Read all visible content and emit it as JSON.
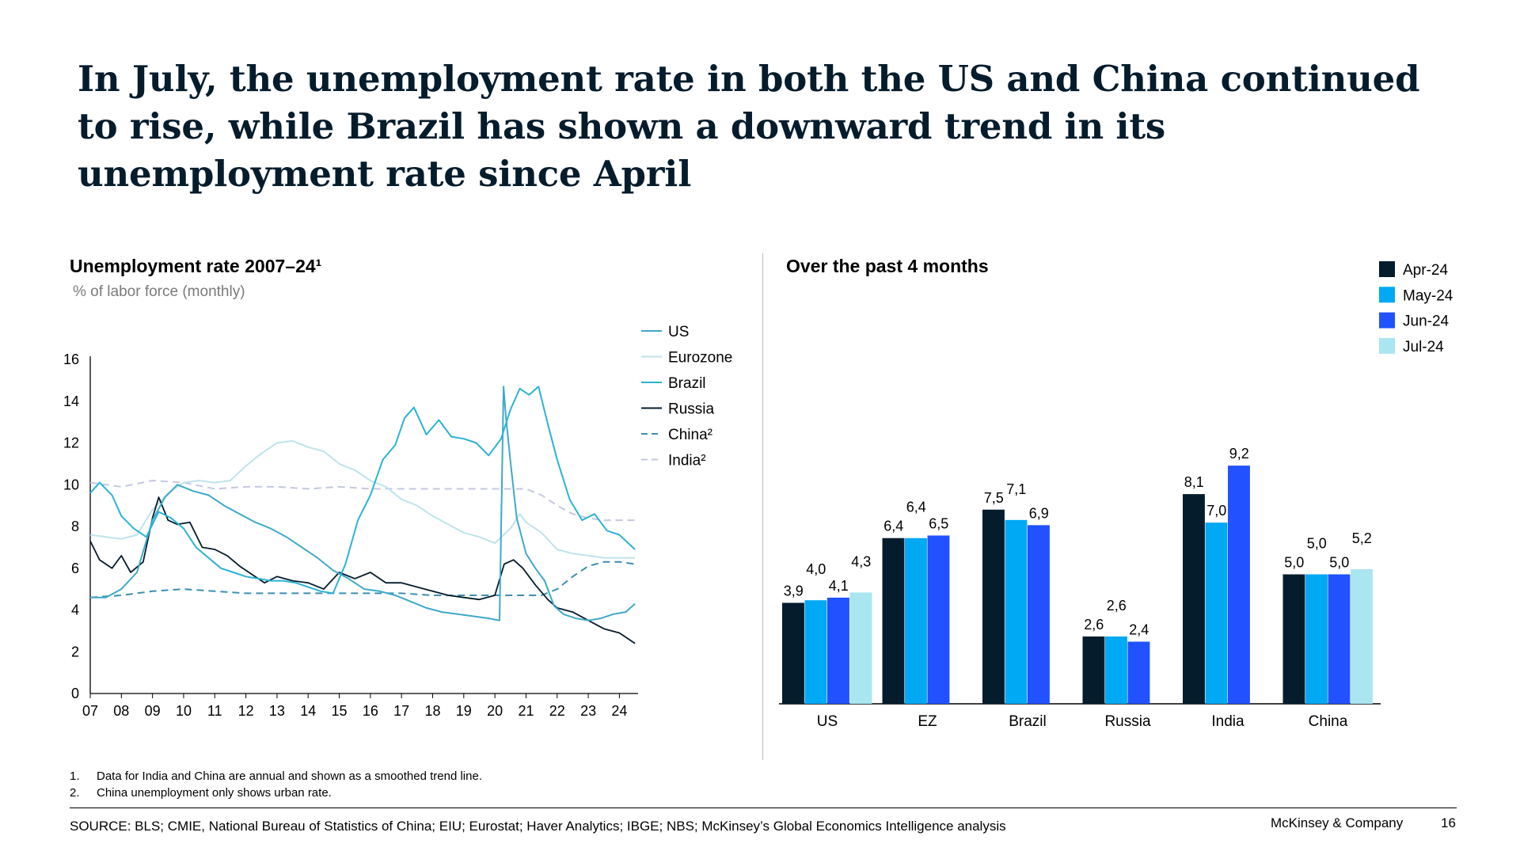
{
  "headline": "In July, the unemployment rate in both the US and China continued to rise, while Brazil has shown a downward trend in its unemployment rate since April",
  "left_panel": {
    "title": "Unemployment rate 2007–24¹",
    "subtitle": "% of labor force (monthly)"
  },
  "right_panel": {
    "title": "Over the past 4 months"
  },
  "colors": {
    "navy": "#051c2c",
    "cyan": "#00a9f4",
    "blue": "#2251ff",
    "light_cyan": "#aae6ef",
    "us": "#3fa9c8",
    "eurozone": "#bfe3ea",
    "brazil": "#2bb3d3",
    "russia": "#051c2c",
    "china": "#3a8fb0",
    "india": "#c4c8e0"
  },
  "chart_data": [
    {
      "type": "line",
      "title": "Unemployment rate 2007–24¹",
      "ylabel": "% of labor force (monthly)",
      "xlim": [
        2007,
        2024.6
      ],
      "ylim": [
        0,
        16
      ],
      "yticks": [
        "0",
        "2",
        "4",
        "6",
        "8",
        "10",
        "12",
        "14",
        "16"
      ],
      "xticks": [
        "07",
        "08",
        "09",
        "10",
        "11",
        "12",
        "13",
        "14",
        "15",
        "16",
        "17",
        "18",
        "19",
        "20",
        "21",
        "22",
        "23",
        "24"
      ],
      "grid": false,
      "legend_position": "top-right",
      "series": [
        {
          "name": "US",
          "style": "solid",
          "color": "#3fa9c8",
          "x": [
            2007,
            2007.5,
            2008,
            2008.5,
            2009,
            2009.4,
            2009.8,
            2010.3,
            2010.8,
            2011.3,
            2011.8,
            2012.3,
            2012.8,
            2013.3,
            2013.8,
            2014.3,
            2014.8,
            2015.3,
            2015.8,
            2016.3,
            2016.8,
            2017.3,
            2017.8,
            2018.3,
            2018.8,
            2019.3,
            2019.8,
            2020.15,
            2020.28,
            2020.35,
            2020.5,
            2020.7,
            2021,
            2021.3,
            2021.6,
            2021.9,
            2022.2,
            2022.6,
            2023,
            2023.4,
            2023.8,
            2024.2,
            2024.5
          ],
          "y": [
            4.6,
            4.6,
            5.0,
            5.8,
            8.3,
            9.4,
            10.0,
            9.7,
            9.5,
            9.0,
            8.6,
            8.2,
            7.9,
            7.5,
            7.0,
            6.5,
            5.9,
            5.5,
            5.0,
            4.9,
            4.7,
            4.4,
            4.1,
            3.9,
            3.8,
            3.7,
            3.6,
            3.5,
            14.7,
            13.3,
            11.1,
            8.4,
            6.7,
            6.0,
            5.4,
            4.2,
            3.8,
            3.6,
            3.5,
            3.6,
            3.8,
            3.9,
            4.3
          ]
        },
        {
          "name": "Eurozone",
          "style": "solid",
          "color": "#bfe3ea",
          "x": [
            2007,
            2007.5,
            2008,
            2008.5,
            2009,
            2009.5,
            2010,
            2010.5,
            2011,
            2011.5,
            2012,
            2012.5,
            2013,
            2013.5,
            2014,
            2014.5,
            2015,
            2015.5,
            2016,
            2016.5,
            2017,
            2017.5,
            2018,
            2018.5,
            2019,
            2019.5,
            2020,
            2020.5,
            2020.8,
            2021,
            2021.5,
            2022,
            2022.5,
            2023,
            2023.5,
            2024,
            2024.5
          ],
          "y": [
            7.6,
            7.5,
            7.4,
            7.6,
            8.8,
            9.6,
            10.1,
            10.2,
            10.1,
            10.2,
            10.9,
            11.5,
            12.0,
            12.1,
            11.8,
            11.6,
            11.0,
            10.7,
            10.2,
            9.9,
            9.3,
            9.0,
            8.5,
            8.1,
            7.7,
            7.5,
            7.2,
            7.9,
            8.6,
            8.2,
            7.7,
            6.9,
            6.7,
            6.6,
            6.5,
            6.5,
            6.5
          ]
        },
        {
          "name": "Brazil",
          "style": "solid",
          "color": "#2bb3d3",
          "x": [
            2007,
            2007.3,
            2007.7,
            2008,
            2008.4,
            2008.8,
            2009.2,
            2009.6,
            2010,
            2010.4,
            2010.8,
            2011.2,
            2011.6,
            2012,
            2012.4,
            2012.8,
            2013.2,
            2013.6,
            2014,
            2014.4,
            2014.8,
            2015.2,
            2015.6,
            2016,
            2016.4,
            2016.8,
            2017.1,
            2017.4,
            2017.8,
            2018.2,
            2018.6,
            2019,
            2019.4,
            2019.8,
            2020.2,
            2020.5,
            2020.8,
            2021.1,
            2021.4,
            2021.7,
            2022,
            2022.4,
            2022.8,
            2023.2,
            2023.6,
            2024,
            2024.5
          ],
          "y": [
            9.6,
            10.1,
            9.5,
            8.5,
            7.9,
            7.5,
            8.7,
            8.4,
            7.9,
            7.0,
            6.5,
            6.0,
            5.8,
            5.6,
            5.5,
            5.4,
            5.4,
            5.3,
            5.1,
            4.9,
            4.8,
            6.2,
            8.3,
            9.5,
            11.2,
            11.9,
            13.2,
            13.7,
            12.4,
            13.1,
            12.3,
            12.2,
            12.0,
            11.4,
            12.2,
            13.6,
            14.6,
            14.3,
            14.7,
            12.9,
            11.2,
            9.3,
            8.3,
            8.6,
            7.8,
            7.6,
            6.9
          ]
        },
        {
          "name": "Russia",
          "style": "solid",
          "color": "#051c2c",
          "x": [
            2007,
            2007.3,
            2007.7,
            2008,
            2008.3,
            2008.7,
            2009,
            2009.2,
            2009.5,
            2009.8,
            2010.2,
            2010.6,
            2011,
            2011.4,
            2011.8,
            2012.2,
            2012.6,
            2013,
            2013.5,
            2014,
            2014.5,
            2015,
            2015.5,
            2016,
            2016.5,
            2017,
            2017.5,
            2018,
            2018.5,
            2019,
            2019.5,
            2020,
            2020.3,
            2020.6,
            2020.9,
            2021.3,
            2021.7,
            2022,
            2022.5,
            2023,
            2023.5,
            2024,
            2024.5
          ],
          "y": [
            7.3,
            6.4,
            6.0,
            6.6,
            5.8,
            6.3,
            8.4,
            9.4,
            8.3,
            8.1,
            8.2,
            7.0,
            6.9,
            6.6,
            6.1,
            5.7,
            5.3,
            5.6,
            5.4,
            5.3,
            5.0,
            5.8,
            5.5,
            5.8,
            5.3,
            5.3,
            5.1,
            4.9,
            4.7,
            4.6,
            4.5,
            4.7,
            6.2,
            6.4,
            6.0,
            5.2,
            4.5,
            4.1,
            3.9,
            3.5,
            3.1,
            2.9,
            2.4
          ]
        },
        {
          "name": "China²",
          "style": "dashed",
          "color": "#3a8fb0",
          "x": [
            2007,
            2008,
            2009,
            2010,
            2011,
            2012,
            2013,
            2014,
            2015,
            2016,
            2017,
            2018,
            2019,
            2020,
            2021,
            2021.5,
            2022,
            2022.5,
            2023,
            2023.5,
            2024,
            2024.5
          ],
          "y": [
            4.6,
            4.7,
            4.9,
            5.0,
            4.9,
            4.8,
            4.8,
            4.8,
            4.8,
            4.8,
            4.8,
            4.7,
            4.7,
            4.7,
            4.7,
            4.7,
            5.0,
            5.6,
            6.1,
            6.3,
            6.3,
            6.2
          ]
        },
        {
          "name": "India²",
          "style": "dashed",
          "color": "#c4c8e0",
          "x": [
            2007,
            2008,
            2009,
            2010,
            2011,
            2012,
            2013,
            2014,
            2015,
            2016,
            2017,
            2018,
            2019,
            2020,
            2021,
            2021.5,
            2022,
            2022.5,
            2023,
            2023.5,
            2024,
            2024.5
          ],
          "y": [
            10.1,
            9.9,
            10.2,
            10.1,
            9.8,
            9.9,
            9.9,
            9.8,
            9.9,
            9.8,
            9.8,
            9.8,
            9.8,
            9.8,
            9.8,
            9.5,
            9.0,
            8.6,
            8.4,
            8.3,
            8.3,
            8.3
          ]
        }
      ]
    },
    {
      "type": "bar",
      "title": "Over the past 4 months",
      "categories": [
        "US",
        "EZ",
        "Brazil",
        "Russia",
        "India",
        "China"
      ],
      "legend_position": "top-right",
      "series": [
        {
          "name": "Apr-24",
          "color": "#051c2c",
          "values": [
            3.9,
            6.4,
            7.5,
            2.6,
            8.1,
            5.0
          ],
          "labels": [
            "3,9",
            "6,4",
            "7,5",
            "2,6",
            "8,1",
            "5,0"
          ]
        },
        {
          "name": "May-24",
          "color": "#00a9f4",
          "values": [
            4.0,
            6.4,
            7.1,
            2.6,
            7.0,
            5.0
          ],
          "labels": [
            "4,0",
            "6,4",
            "7,1",
            "2,6",
            "7,0",
            "5,0"
          ]
        },
        {
          "name": "Jun-24",
          "color": "#2251ff",
          "values": [
            4.1,
            6.5,
            6.9,
            2.4,
            9.2,
            5.0
          ],
          "labels": [
            "4,1",
            "6,5",
            "6,9",
            "2,4",
            "9,2",
            "5,0"
          ]
        },
        {
          "name": "Jul-24",
          "color": "#aae6ef",
          "values": [
            4.3,
            null,
            null,
            null,
            null,
            5.2
          ],
          "labels": [
            "4,3",
            null,
            null,
            null,
            null,
            "5,2"
          ]
        }
      ]
    }
  ],
  "footnotes": [
    {
      "num": "1.",
      "text": "Data for India and China are annual and shown as a smoothed trend line."
    },
    {
      "num": "2.",
      "text": "China unemployment only shows urban rate."
    }
  ],
  "source": "SOURCE: BLS; CMIE, National Bureau of Statistics of China; EIU; Eurostat; Haver Analytics; IBGE; NBS; McKinsey’s Global Economics Intelligence analysis",
  "brand": "McKinsey & Company",
  "page_number": "16"
}
